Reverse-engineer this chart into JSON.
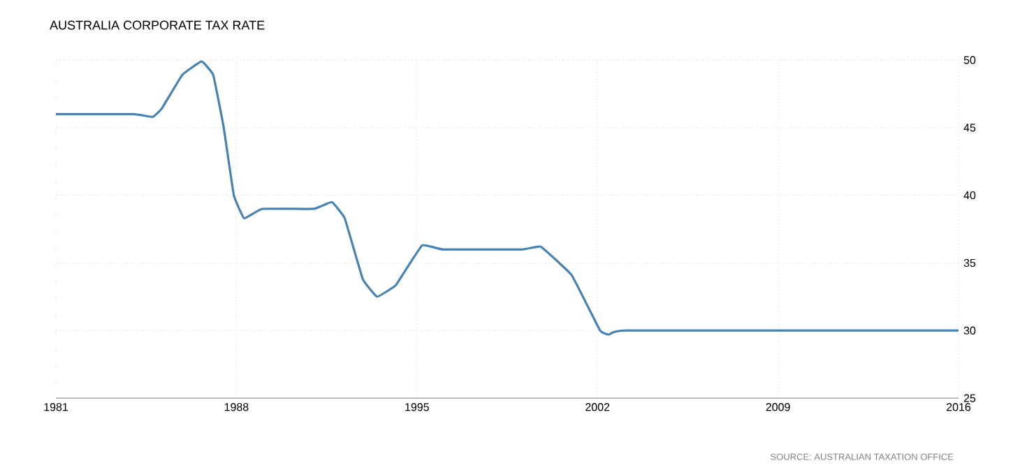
{
  "chart_data": {
    "type": "line",
    "title": "AUSTRALIA CORPORATE TAX RATE",
    "annotations": [
      "SOURCE: AUSTRALIAN TAXATION OFFICE"
    ],
    "x": [
      1981,
      1984.0,
      1984.75,
      1985.1,
      1985.9,
      1986.65,
      1987.1,
      1987.5,
      1987.9,
      1988.3,
      1989.0,
      1991.0,
      1991.7,
      1992.2,
      1992.9,
      1993.45,
      1994.0,
      1994.2,
      1995.2,
      1996.0,
      1999.1,
      1999.8,
      2001.0,
      2002.1,
      2002.45,
      2003.1,
      2016
    ],
    "series": [
      {
        "color": "#4682b4",
        "values": [
          46,
          46,
          45.8,
          46.4,
          48.9,
          49.9,
          48.9,
          45.1,
          40.0,
          38.3,
          39.0,
          39.0,
          39.5,
          38.3,
          33.8,
          32.5,
          33.1,
          33.4,
          36.3,
          36.0,
          36.0,
          36.2,
          34.1,
          30.0,
          29.7,
          30.0,
          30
        ]
      }
    ],
    "xlim": [
      1981,
      2016
    ],
    "xticks": [
      1981,
      1988,
      1995,
      2002,
      2009,
      2016
    ],
    "ylim": [
      25,
      50
    ],
    "yticks": [
      25,
      30,
      35,
      40,
      45,
      50
    ],
    "grid": true,
    "line_style": "solid",
    "marker": "none"
  }
}
